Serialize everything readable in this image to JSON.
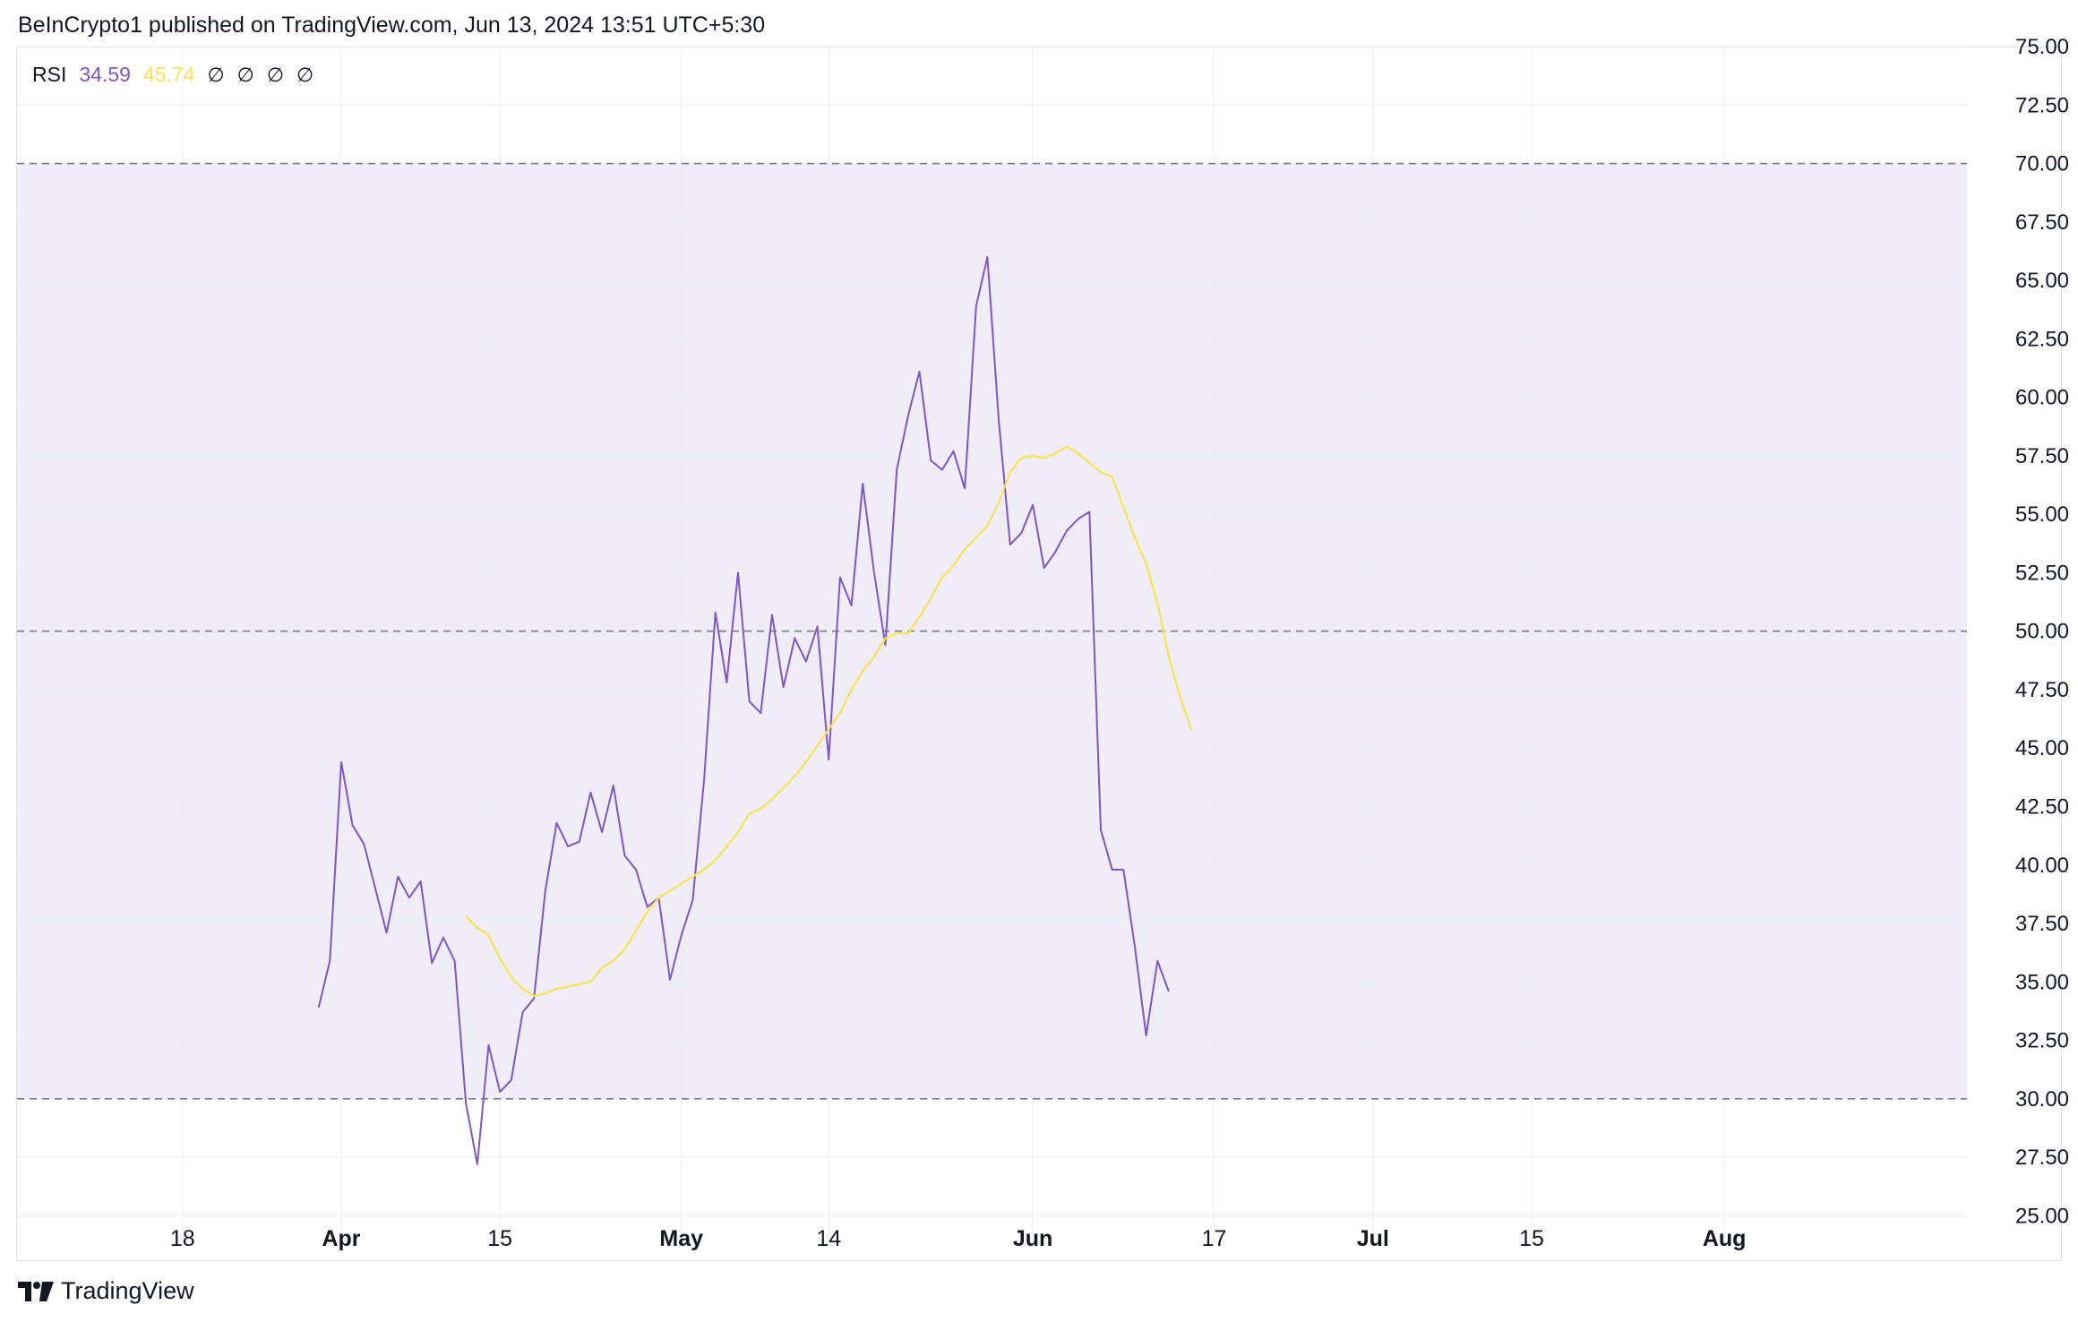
{
  "header": {
    "publisher_line": "BeInCrypto1 published on TradingView.com, Jun 13, 2024 13:51 UTC+5:30"
  },
  "legend": {
    "indicator": "RSI",
    "rsi_value": "34.59",
    "ma_value": "45.74",
    "placeholders": [
      "∅",
      "∅",
      "∅",
      "∅"
    ]
  },
  "footer": {
    "brand": "TradingView",
    "logo_icon": "tradingview-logo-icon"
  },
  "colors": {
    "rsi_line": "#7e57c2",
    "ma_line": "#f7e35a",
    "band_fill": "#f0ecf8",
    "grid": "#ececf0",
    "band_lines": "#7a7a86"
  },
  "chart_data": {
    "type": "line",
    "title": "",
    "xlabel": "",
    "ylabel": "",
    "ylim": [
      23.75,
      75.0
    ],
    "y_ticks": [
      "75.00",
      "72.50",
      "70.00",
      "67.50",
      "65.00",
      "62.50",
      "60.00",
      "57.50",
      "55.00",
      "52.50",
      "50.00",
      "47.50",
      "45.00",
      "42.50",
      "40.00",
      "37.50",
      "35.00",
      "32.50",
      "30.00",
      "27.50",
      "25.00"
    ],
    "x_ticks": [
      {
        "label": "18",
        "index": -14,
        "bold": false
      },
      {
        "label": "Apr",
        "index": 0,
        "bold": true
      },
      {
        "label": "15",
        "index": 14,
        "bold": false
      },
      {
        "label": "May",
        "index": 30,
        "bold": true
      },
      {
        "label": "14",
        "index": 43,
        "bold": false
      },
      {
        "label": "Jun",
        "index": 61,
        "bold": true
      },
      {
        "label": "17",
        "index": 77,
        "bold": false
      },
      {
        "label": "Jul",
        "index": 91,
        "bold": true
      },
      {
        "label": "15",
        "index": 105,
        "bold": false
      },
      {
        "label": "Aug",
        "index": 122,
        "bold": true
      }
    ],
    "x_range": [
      -28.6,
      143.4
    ],
    "band": {
      "upper": 70.0,
      "middle": 50.0,
      "lower": 30.0
    },
    "grid": true,
    "series": [
      {
        "name": "RSI",
        "start_index": -2,
        "values": [
          33.9,
          35.9,
          44.4,
          41.7,
          40.9,
          39.0,
          37.1,
          39.5,
          38.6,
          39.3,
          35.8,
          36.9,
          35.9,
          29.8,
          27.2,
          32.3,
          30.3,
          30.8,
          33.7,
          34.3,
          38.9,
          41.8,
          40.8,
          41.0,
          43.1,
          41.4,
          43.4,
          40.4,
          39.8,
          38.2,
          38.6,
          35.1,
          37.0,
          38.5,
          43.6,
          50.8,
          47.8,
          52.5,
          47.0,
          46.5,
          50.7,
          47.6,
          49.7,
          48.7,
          50.2,
          44.5,
          52.3,
          51.1,
          56.3,
          52.5,
          49.4,
          56.9,
          59.2,
          61.1,
          57.3,
          56.9,
          57.7,
          56.1,
          63.9,
          66.0,
          59.0,
          53.7,
          54.2,
          55.4,
          52.7,
          53.4,
          54.3,
          54.8,
          55.1,
          41.5,
          39.8,
          39.8,
          36.5,
          32.7,
          35.9,
          34.59
        ]
      },
      {
        "name": "RSI-based MA",
        "start_index": 11,
        "values": [
          37.8,
          37.3,
          37.0,
          36.0,
          35.2,
          34.7,
          34.4,
          34.5,
          34.7,
          34.8,
          34.9,
          35.0,
          35.6,
          35.9,
          36.4,
          37.2,
          38.0,
          38.6,
          38.9,
          39.2,
          39.5,
          39.8,
          40.2,
          40.8,
          41.4,
          42.2,
          42.4,
          42.8,
          43.3,
          43.8,
          44.4,
          45.1,
          45.8,
          46.5,
          47.5,
          48.3,
          48.9,
          49.7,
          49.9,
          49.9,
          50.6,
          51.4,
          52.3,
          52.8,
          53.5,
          54.0,
          54.5,
          55.5,
          56.8,
          57.4,
          57.5,
          57.4,
          57.6,
          57.9,
          57.6,
          57.2,
          56.8,
          56.6,
          55.3,
          54.0,
          52.9,
          51.2,
          48.9,
          47.2,
          45.74
        ]
      }
    ]
  }
}
